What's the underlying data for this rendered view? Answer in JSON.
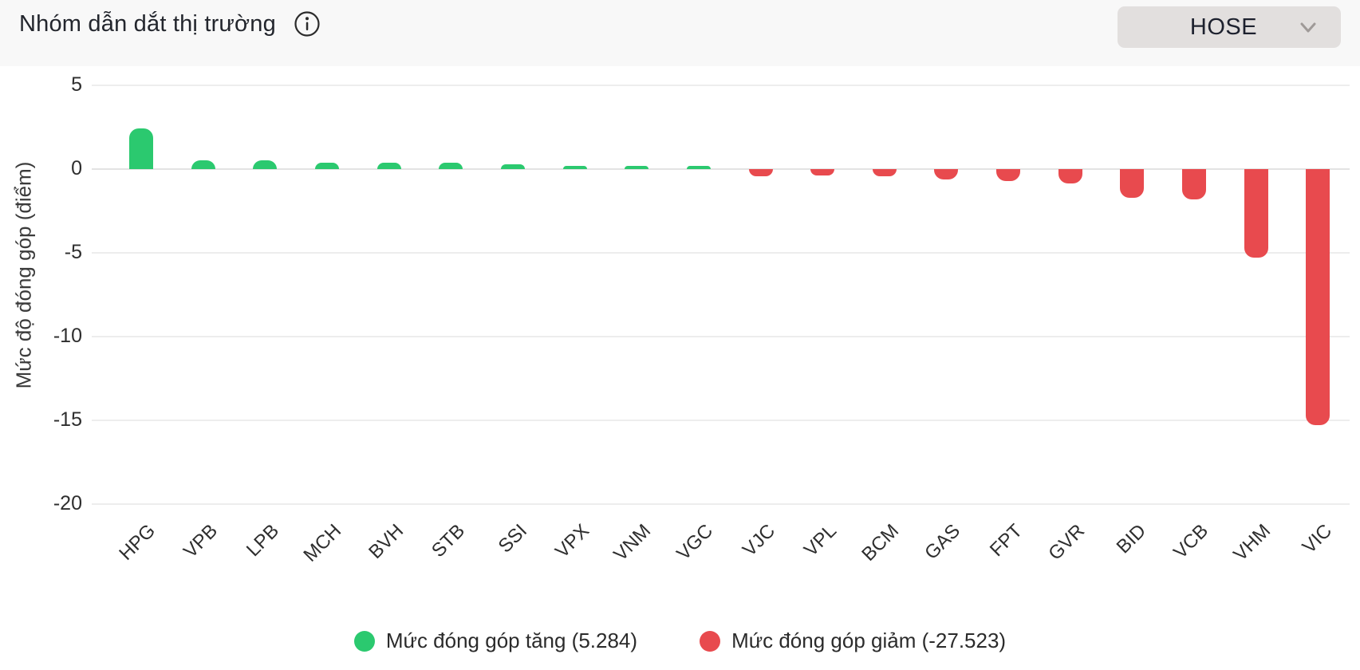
{
  "header": {
    "title": "Nhóm dẫn dắt thị trường",
    "info_icon": "info-icon",
    "exchange_selector": {
      "value": "HOSE"
    }
  },
  "chart_data": {
    "type": "bar",
    "title": "Nhóm dẫn dắt thị trường",
    "ylabel": "Mức độ đóng góp (điểm)",
    "xlabel": "",
    "ylim": [
      -20,
      5
    ],
    "yticks": [
      5,
      0,
      -5,
      -10,
      -15,
      -20
    ],
    "grid": true,
    "legend_position": "bottom",
    "categories": [
      "HPG",
      "VPB",
      "LPB",
      "MCH",
      "BVH",
      "STB",
      "SSI",
      "VPX",
      "VNM",
      "VGC",
      "VJC",
      "VPL",
      "BCM",
      "GAS",
      "FPT",
      "GVR",
      "BID",
      "VCB",
      "VHM",
      "VIC"
    ],
    "values": [
      2.45,
      0.5,
      0.52,
      0.37,
      0.37,
      0.4,
      0.27,
      0.16,
      0.14,
      0.12,
      -0.42,
      -0.4,
      -0.42,
      -0.6,
      -0.72,
      -0.88,
      -1.7,
      -1.8,
      -5.3,
      -15.28
    ],
    "positive_color": "#2bc96f",
    "negative_color": "#e84a4e",
    "positive_total": 5.284,
    "negative_total": -27.523
  },
  "legend": {
    "increase": {
      "label": "Mức đóng góp tăng (5.284)",
      "color": "#2bc96f"
    },
    "decrease": {
      "label": "Mức đóng góp giảm (-27.523)",
      "color": "#e84a4e"
    }
  }
}
